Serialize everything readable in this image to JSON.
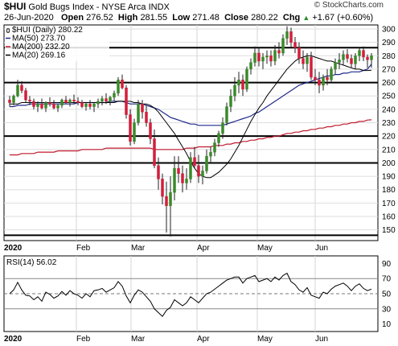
{
  "header": {
    "symbol": "$HUI",
    "description": "Gold Bugs Index - NYSE Arca INDX",
    "credit": "© StockCharts.com",
    "date": "26-Jun-2020",
    "open_label": "Open",
    "open": "276.52",
    "high_label": "High",
    "high": "281.55",
    "low_label": "Low",
    "low": "271.48",
    "close_label": "Close",
    "close": "280.22",
    "chg_label": "Chg",
    "chg": "+1.67 (+0.60%)",
    "chg_icon": "up-triangle-icon"
  },
  "legend": [
    {
      "label": "$HUI (Daily) 280.22",
      "color": "#000000",
      "icon": "candlestick-icon"
    },
    {
      "label": "MA(50) 273.70",
      "color": "#1f2a8a"
    },
    {
      "label": "MA(200) 232.20",
      "color": "#c0182c"
    },
    {
      "label": "MA(20) 269.16",
      "color": "#000000"
    }
  ],
  "rsi_legend": "RSI(14) 56.02",
  "colors": {
    "up": "#3a8a2a",
    "down": "#d21e3c",
    "ma50": "#1f2a8a",
    "ma200": "#c0182c",
    "ma20": "#000000",
    "rsi": "#000000"
  },
  "chart_data": [
    {
      "type": "candlestick",
      "title": "Gold Bugs Index - NYSE Arca INDX",
      "x_tick_labels": [
        "2020",
        "Feb",
        "Mar",
        "Apr",
        "May",
        "Jun"
      ],
      "y_tick_labels": [
        "150",
        "160",
        "170",
        "180",
        "190",
        "200",
        "210",
        "220",
        "230",
        "240",
        "250",
        "260",
        "270",
        "280",
        "290",
        "300"
      ],
      "ylim": [
        142,
        303
      ],
      "horizontal_lines": [
        146,
        200,
        220,
        260,
        286
      ],
      "grid": true,
      "candles": [
        [
          247,
          250,
          242,
          245
        ],
        [
          245,
          251,
          243,
          250
        ],
        [
          250,
          262,
          249,
          258
        ],
        [
          258,
          261,
          252,
          254
        ],
        [
          254,
          256,
          245,
          247
        ],
        [
          247,
          250,
          243,
          246
        ],
        [
          246,
          248,
          240,
          242
        ],
        [
          242,
          246,
          238,
          244
        ],
        [
          244,
          248,
          240,
          241
        ],
        [
          241,
          246,
          238,
          245
        ],
        [
          245,
          249,
          242,
          244
        ],
        [
          244,
          247,
          240,
          241
        ],
        [
          241,
          244,
          238,
          243
        ],
        [
          243,
          248,
          241,
          247
        ],
        [
          247,
          250,
          244,
          245
        ],
        [
          245,
          248,
          242,
          247
        ],
        [
          247,
          251,
          244,
          246
        ],
        [
          246,
          249,
          243,
          245
        ],
        [
          245,
          247,
          241,
          242
        ],
        [
          242,
          245,
          239,
          244
        ],
        [
          244,
          247,
          240,
          242
        ],
        [
          242,
          245,
          238,
          244
        ],
        [
          244,
          248,
          241,
          246
        ],
        [
          246,
          250,
          243,
          248
        ],
        [
          248,
          252,
          244,
          246
        ],
        [
          246,
          250,
          243,
          249
        ],
        [
          249,
          254,
          246,
          252
        ],
        [
          252,
          264,
          250,
          262
        ],
        [
          262,
          266,
          255,
          256
        ],
        [
          256,
          258,
          233,
          236
        ],
        [
          236,
          240,
          213,
          216
        ],
        [
          216,
          233,
          214,
          230
        ],
        [
          230,
          247,
          228,
          244
        ],
        [
          244,
          247,
          233,
          238
        ],
        [
          238,
          243,
          227,
          230
        ],
        [
          230,
          233,
          214,
          218
        ],
        [
          218,
          225,
          196,
          198
        ],
        [
          198,
          204,
          180,
          188
        ],
        [
          188,
          192,
          169,
          175
        ],
        [
          175,
          186,
          148,
          168
        ],
        [
          168,
          190,
          145,
          178
        ],
        [
          178,
          205,
          172,
          196
        ],
        [
          196,
          205,
          185,
          192
        ],
        [
          192,
          198,
          178,
          185
        ],
        [
          185,
          196,
          180,
          188
        ],
        [
          188,
          208,
          185,
          204
        ],
        [
          204,
          212,
          196,
          198
        ],
        [
          198,
          206,
          185,
          190
        ],
        [
          190,
          198,
          184,
          194
        ],
        [
          194,
          210,
          192,
          205
        ],
        [
          205,
          212,
          200,
          208
        ],
        [
          208,
          218,
          205,
          215
        ],
        [
          215,
          224,
          212,
          222
        ],
        [
          222,
          234,
          218,
          230
        ],
        [
          230,
          245,
          228,
          242
        ],
        [
          242,
          255,
          238,
          250
        ],
        [
          250,
          264,
          246,
          258
        ],
        [
          258,
          268,
          252,
          262
        ],
        [
          262,
          266,
          250,
          255
        ],
        [
          255,
          272,
          253,
          270
        ],
        [
          270,
          278,
          266,
          275
        ],
        [
          275,
          287,
          272,
          282
        ],
        [
          282,
          286,
          272,
          276
        ],
        [
          276,
          282,
          270,
          279
        ],
        [
          279,
          284,
          274,
          280
        ],
        [
          280,
          284,
          272,
          276
        ],
        [
          276,
          288,
          273,
          284
        ],
        [
          284,
          290,
          278,
          282
        ],
        [
          282,
          296,
          280,
          293
        ],
        [
          293,
          302,
          288,
          298
        ],
        [
          298,
          301,
          286,
          290
        ],
        [
          290,
          294,
          282,
          286
        ],
        [
          286,
          290,
          274,
          278
        ],
        [
          278,
          284,
          270,
          274
        ],
        [
          274,
          282,
          268,
          279
        ],
        [
          279,
          283,
          262,
          264
        ],
        [
          264,
          270,
          258,
          262
        ],
        [
          262,
          268,
          252,
          258
        ],
        [
          258,
          266,
          254,
          264
        ],
        [
          264,
          270,
          258,
          262
        ],
        [
          262,
          272,
          260,
          270
        ],
        [
          270,
          278,
          266,
          275
        ],
        [
          275,
          282,
          270,
          277
        ],
        [
          277,
          284,
          273,
          281
        ],
        [
          281,
          285,
          275,
          278
        ],
        [
          278,
          281,
          271,
          274
        ],
        [
          274,
          282,
          270,
          280
        ],
        [
          280,
          286,
          276,
          284
        ],
        [
          284,
          287,
          276,
          279
        ],
        [
          279,
          281,
          271,
          277
        ],
        [
          277,
          282,
          271,
          280
        ]
      ],
      "ma50": [
        242,
        242,
        243,
        243,
        243,
        244,
        244,
        244,
        244,
        244,
        244,
        244,
        244,
        244,
        244,
        244,
        244,
        245,
        245,
        245,
        245,
        245,
        245,
        245,
        245,
        246,
        246,
        246,
        246,
        245,
        244,
        244,
        244,
        244,
        243,
        242,
        241,
        240,
        238,
        236,
        234,
        233,
        232,
        231,
        230,
        229,
        229,
        228,
        228,
        228,
        228,
        228,
        228,
        228,
        229,
        230,
        231,
        232,
        233,
        234,
        235,
        237,
        238,
        240,
        242,
        244,
        246,
        248,
        250,
        252,
        254,
        256,
        258,
        259,
        260,
        261,
        262,
        263,
        264,
        265,
        265,
        266,
        266,
        267,
        267,
        268,
        268,
        268,
        269,
        270,
        273.7
      ],
      "ma200": [
        206,
        206,
        206,
        207,
        207,
        207,
        207,
        208,
        208,
        208,
        208,
        208,
        209,
        209,
        209,
        209,
        209,
        209,
        210,
        210,
        210,
        210,
        210,
        210,
        211,
        211,
        211,
        211,
        211,
        211,
        211,
        211,
        211,
        211,
        211,
        211,
        210,
        210,
        210,
        210,
        210,
        210,
        210,
        210,
        211,
        211,
        211,
        212,
        212,
        212,
        212,
        213,
        213,
        213,
        214,
        214,
        215,
        215,
        216,
        216,
        217,
        217,
        218,
        218,
        219,
        219,
        220,
        220,
        221,
        222,
        222,
        223,
        223,
        224,
        224,
        225,
        225,
        226,
        226,
        227,
        227,
        228,
        228,
        229,
        229,
        230,
        230,
        231,
        231,
        232,
        232.2
      ],
      "ma20": [
        244,
        244,
        244,
        245,
        245,
        245,
        245,
        245,
        245,
        245,
        245,
        245,
        245,
        245,
        245,
        245,
        245,
        245,
        245,
        245,
        245,
        245,
        245,
        245,
        245,
        245,
        245,
        246,
        246,
        246,
        246,
        245,
        245,
        244,
        244,
        243,
        241,
        238,
        234,
        230,
        226,
        222,
        217,
        212,
        207,
        201,
        196,
        192,
        190,
        189,
        189,
        191,
        193,
        196,
        199,
        203,
        208,
        213,
        219,
        225,
        231,
        236,
        241,
        245,
        250,
        254,
        258,
        262,
        266,
        270,
        273,
        276,
        278,
        279,
        280,
        280,
        279,
        278,
        277,
        276,
        276,
        275,
        274,
        273,
        272,
        271,
        270,
        270,
        269,
        269,
        269.2
      ]
    },
    {
      "type": "line",
      "title": "RSI(14)",
      "x_tick_labels": [
        "2020",
        "Feb",
        "Mar",
        "Apr",
        "May",
        "Jun"
      ],
      "y_tick_labels": [
        "10",
        "30",
        "50",
        "70",
        "90"
      ],
      "ylim": [
        0,
        100
      ],
      "reference_lines": [
        30,
        50,
        70
      ],
      "values": [
        50,
        55,
        65,
        55,
        48,
        47,
        42,
        46,
        40,
        52,
        49,
        44,
        47,
        53,
        48,
        54,
        50,
        48,
        44,
        50,
        46,
        54,
        55,
        57,
        52,
        55,
        58,
        66,
        60,
        47,
        38,
        48,
        55,
        52,
        46,
        40,
        30,
        25,
        20,
        28,
        32,
        42,
        38,
        34,
        38,
        46,
        42,
        38,
        44,
        50,
        52,
        56,
        60,
        64,
        68,
        70,
        72,
        72,
        64,
        70,
        72,
        74,
        66,
        68,
        70,
        66,
        72,
        68,
        74,
        77,
        66,
        62,
        55,
        52,
        58,
        48,
        46,
        44,
        52,
        50,
        56,
        60,
        62,
        64,
        60,
        54,
        60,
        63,
        57,
        54,
        56.02
      ]
    }
  ]
}
